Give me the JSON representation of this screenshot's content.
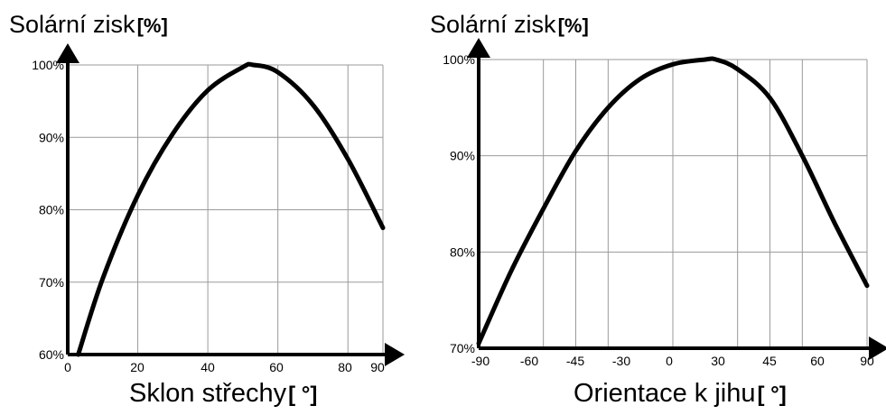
{
  "chart_data": [
    {
      "type": "line",
      "title": "",
      "ylabel": "Solární zisk",
      "ylabel_unit": "[%]",
      "xlabel": "Sklon střechy",
      "xlabel_unit": "[ °]",
      "xlim": [
        0,
        90
      ],
      "ylim": [
        60,
        100
      ],
      "x_ticks": [
        "0",
        "20",
        "40",
        "60",
        "80",
        "90"
      ],
      "y_ticks": [
        "60%",
        "70%",
        "80%",
        "90%",
        "100%"
      ],
      "grid": true,
      "series": [
        {
          "x": [
            3,
            10,
            20,
            30,
            40,
            50,
            53,
            60,
            70,
            80,
            90
          ],
          "values": [
            60,
            70.5,
            82,
            90.5,
            96.5,
            99.7,
            100,
            99,
            94.5,
            87,
            77.5
          ]
        }
      ]
    },
    {
      "type": "line",
      "title": "",
      "ylabel": "Solární zisk",
      "ylabel_unit": "[%]",
      "xlabel": "Orientace k jihu",
      "xlabel_unit": "[ °]",
      "xlim": [
        -90,
        90
      ],
      "ylim": [
        70,
        100
      ],
      "x_ticks": [
        "-90",
        "-60",
        "-45",
        "-30",
        "0",
        "30",
        "45",
        "60",
        "90"
      ],
      "y_ticks": [
        "70%",
        "80%",
        "90%",
        "100%"
      ],
      "grid": true,
      "series": [
        {
          "x": [
            -90,
            -75,
            -60,
            -45,
            -30,
            -15,
            0,
            15,
            20,
            30,
            45,
            60,
            75,
            90
          ],
          "values": [
            70.5,
            78,
            84.5,
            90.5,
            95,
            98,
            99.5,
            100,
            100,
            99,
            96,
            90,
            83,
            76.5
          ]
        }
      ]
    }
  ]
}
